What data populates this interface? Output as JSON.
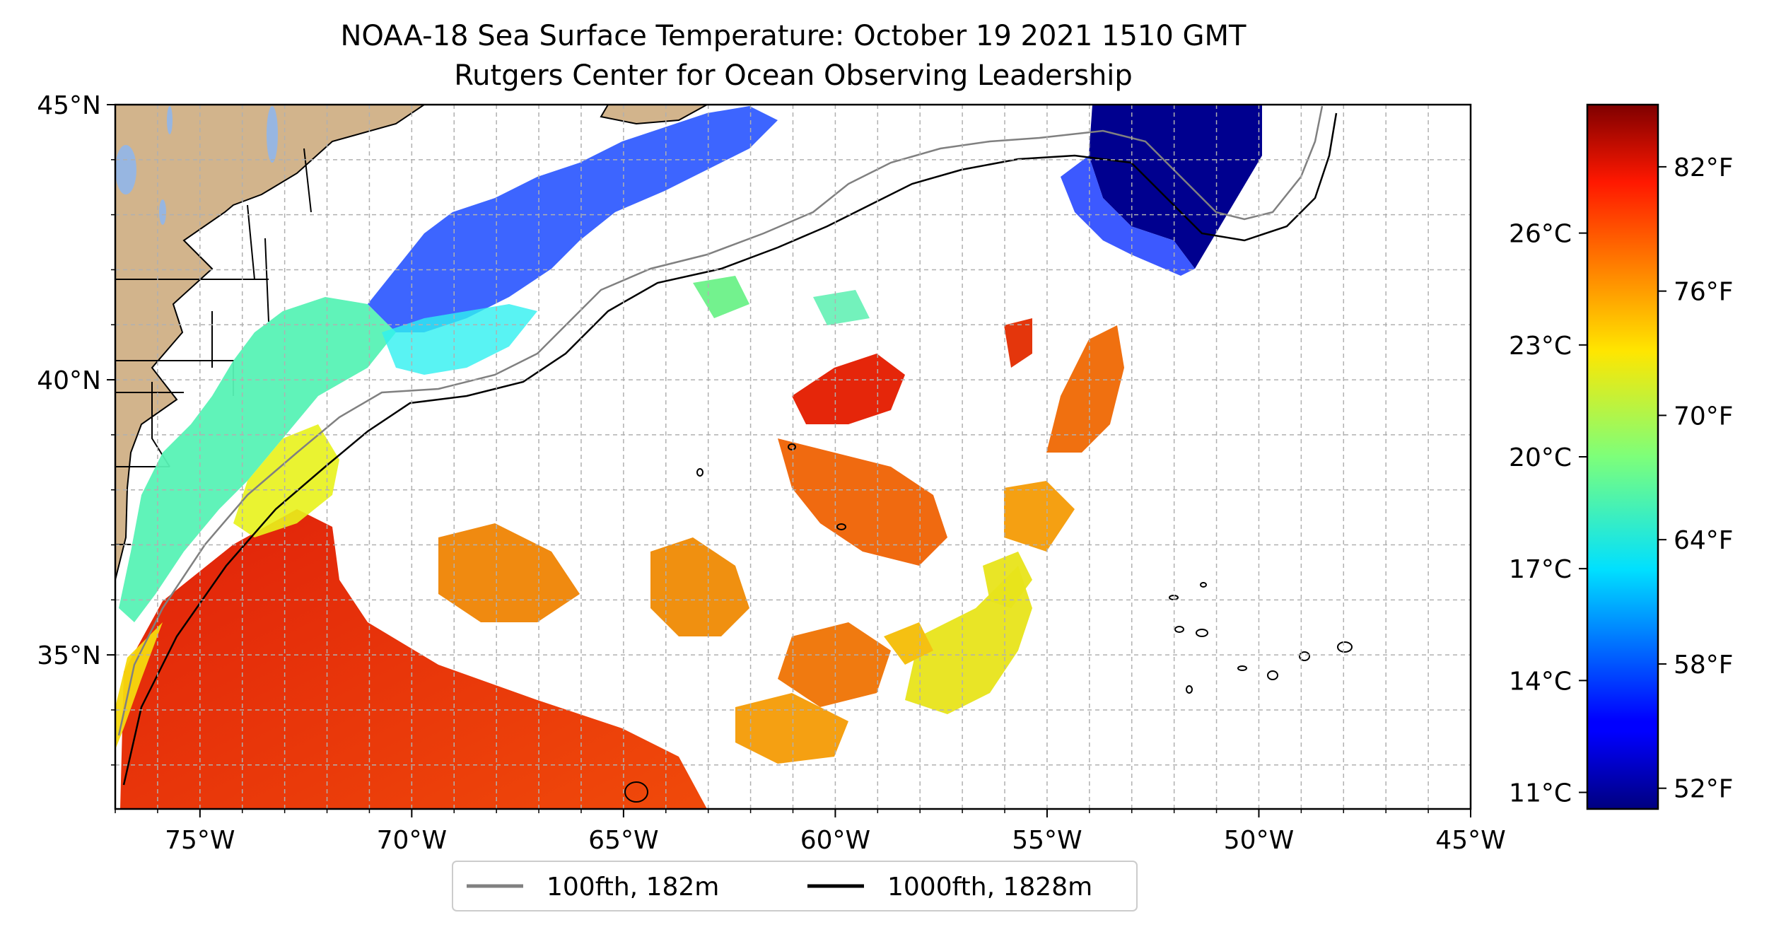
{
  "title": {
    "line1": "NOAA-18 Sea Surface Temperature: October 19 2021 1510 GMT",
    "line2": "Rutgers Center for Ocean Observing Leadership"
  },
  "map": {
    "lon_range": [
      -77,
      -45
    ],
    "lat_range": [
      32.2,
      45
    ],
    "x_ticks": [
      {
        "lon": -75,
        "label": "75°W"
      },
      {
        "lon": -70,
        "label": "70°W"
      },
      {
        "lon": -65,
        "label": "65°W"
      },
      {
        "lon": -60,
        "label": "60°W"
      },
      {
        "lon": -55,
        "label": "55°W"
      },
      {
        "lon": -50,
        "label": "50°W"
      },
      {
        "lon": -45,
        "label": "45°W"
      }
    ],
    "y_ticks": [
      {
        "lat": 45,
        "label": "45°N"
      },
      {
        "lat": 40,
        "label": "40°N"
      },
      {
        "lat": 35,
        "label": "35°N"
      }
    ],
    "grid": true,
    "land_color": "#d2b48c",
    "lake_color": "#97b6e1",
    "colormap": "jet"
  },
  "legend": {
    "items": [
      {
        "label": "100fth, 182m",
        "color": "#808080"
      },
      {
        "label": "1000fth, 1828m",
        "color": "#000000"
      }
    ]
  },
  "colorbar": {
    "range_f": [
      51,
      85
    ],
    "celsius_ticks": [
      {
        "c": 26,
        "label": "26°C"
      },
      {
        "c": 23,
        "label": "23°C"
      },
      {
        "c": 20,
        "label": "20°C"
      },
      {
        "c": 17,
        "label": "17°C"
      },
      {
        "c": 14,
        "label": "14°C"
      },
      {
        "c": 11,
        "label": "11°C"
      }
    ],
    "fahrenheit_ticks": [
      {
        "f": 82,
        "label": "82°F"
      },
      {
        "f": 76,
        "label": "76°F"
      },
      {
        "f": 70,
        "label": "70°F"
      },
      {
        "f": 64,
        "label": "64°F"
      },
      {
        "f": 58,
        "label": "58°F"
      },
      {
        "f": 52,
        "label": "52°F"
      }
    ]
  }
}
